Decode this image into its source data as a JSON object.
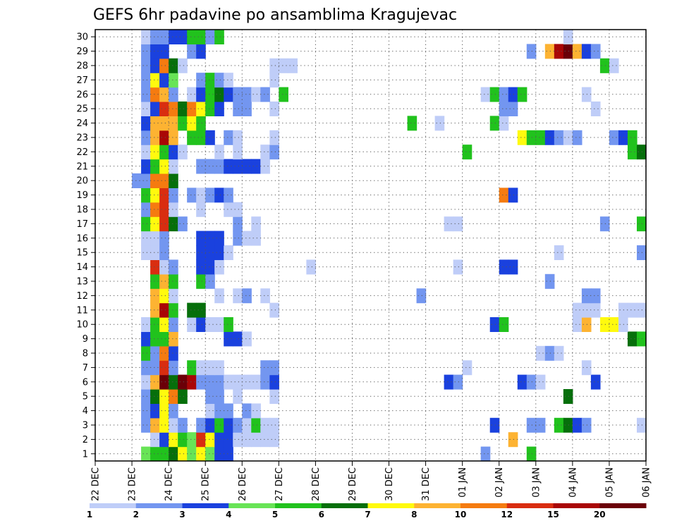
{
  "chart_data": {
    "type": "heatmap",
    "title": "GEFS 6hr padavine po ansamblima Kragujevac",
    "xlabel": "",
    "ylabel": "",
    "x_tick_labels": [
      "22 DEC",
      "23 DEC",
      "24 DEC",
      "25 DEC",
      "26 DEC",
      "27 DEC",
      "28 DEC",
      "29 DEC",
      "30 DEC",
      "31 DEC",
      "01 JAN",
      "02 JAN",
      "03 JAN",
      "04 JAN",
      "05 JAN",
      "06 JAN"
    ],
    "y_tick_labels": [
      "1",
      "2",
      "3",
      "4",
      "5",
      "6",
      "7",
      "8",
      "9",
      "10",
      "11",
      "12",
      "13",
      "14",
      "15",
      "16",
      "17",
      "18",
      "19",
      "20",
      "21",
      "22",
      "23",
      "24",
      "25",
      "26",
      "27",
      "28",
      "29",
      "30"
    ],
    "x_range_steps": [
      0,
      60
    ],
    "steps_per_day": 4,
    "members": 30,
    "grid": true,
    "colorbar_labels": [
      "1",
      "2",
      "3",
      "4",
      "5",
      "6",
      "7",
      "8",
      "10",
      "12",
      "15",
      "20"
    ],
    "levels": [
      1,
      2,
      3,
      4,
      5,
      6,
      7,
      8,
      10,
      12,
      15,
      20
    ],
    "colors": [
      "#bfcdf8",
      "#7396f0",
      "#1a41de",
      "#68e456",
      "#21c21d",
      "#066f0b",
      "#fffa0e",
      "#fdb332",
      "#f57b10",
      "#d92d10",
      "#a90606",
      "#6b0008"
    ],
    "cells": [
      [
        1,
        6,
        4
      ],
      [
        1,
        7,
        5
      ],
      [
        1,
        8,
        5
      ],
      [
        1,
        9,
        6
      ],
      [
        1,
        10,
        7
      ],
      [
        1,
        11,
        4
      ],
      [
        1,
        12,
        7
      ],
      [
        1,
        13,
        4
      ],
      [
        1,
        14,
        3
      ],
      [
        1,
        15,
        3
      ],
      [
        1,
        43,
        2
      ],
      [
        1,
        48,
        5
      ],
      [
        2,
        7,
        1
      ],
      [
        2,
        8,
        3
      ],
      [
        2,
        9,
        7
      ],
      [
        2,
        10,
        5
      ],
      [
        2,
        11,
        4
      ],
      [
        2,
        12,
        10
      ],
      [
        2,
        13,
        7
      ],
      [
        2,
        14,
        3
      ],
      [
        2,
        15,
        3
      ],
      [
        2,
        16,
        1
      ],
      [
        2,
        17,
        1
      ],
      [
        2,
        18,
        1
      ],
      [
        2,
        19,
        1
      ],
      [
        2,
        20,
        1
      ],
      [
        2,
        46,
        8
      ],
      [
        3,
        6,
        2
      ],
      [
        3,
        7,
        8
      ],
      [
        3,
        8,
        7
      ],
      [
        3,
        9,
        1
      ],
      [
        3,
        10,
        2
      ],
      [
        3,
        12,
        2
      ],
      [
        3,
        13,
        3
      ],
      [
        3,
        14,
        5
      ],
      [
        3,
        15,
        3
      ],
      [
        3,
        16,
        2
      ],
      [
        3,
        17,
        1
      ],
      [
        3,
        18,
        5
      ],
      [
        3,
        19,
        1
      ],
      [
        3,
        20,
        1
      ],
      [
        3,
        44,
        3
      ],
      [
        3,
        48,
        2
      ],
      [
        3,
        49,
        2
      ],
      [
        3,
        51,
        5
      ],
      [
        3,
        52,
        6
      ],
      [
        3,
        53,
        3
      ],
      [
        3,
        54,
        2
      ],
      [
        3,
        60,
        1
      ],
      [
        4,
        6,
        2
      ],
      [
        4,
        7,
        3
      ],
      [
        4,
        8,
        7
      ],
      [
        4,
        9,
        2
      ],
      [
        4,
        13,
        1
      ],
      [
        4,
        14,
        2
      ],
      [
        4,
        15,
        2
      ],
      [
        4,
        17,
        2
      ],
      [
        4,
        18,
        1
      ],
      [
        5,
        6,
        2
      ],
      [
        5,
        7,
        6
      ],
      [
        5,
        8,
        7
      ],
      [
        5,
        9,
        9
      ],
      [
        5,
        10,
        6
      ],
      [
        5,
        13,
        2
      ],
      [
        5,
        14,
        2
      ],
      [
        5,
        16,
        1
      ],
      [
        5,
        20,
        1
      ],
      [
        5,
        52,
        6
      ],
      [
        6,
        6,
        1
      ],
      [
        6,
        7,
        8
      ],
      [
        6,
        8,
        12
      ],
      [
        6,
        9,
        6
      ],
      [
        6,
        10,
        12
      ],
      [
        6,
        11,
        11
      ],
      [
        6,
        12,
        2
      ],
      [
        6,
        13,
        2
      ],
      [
        6,
        14,
        2
      ],
      [
        6,
        15,
        1
      ],
      [
        6,
        16,
        1
      ],
      [
        6,
        17,
        1
      ],
      [
        6,
        18,
        1
      ],
      [
        6,
        19,
        2
      ],
      [
        6,
        20,
        3
      ],
      [
        6,
        39,
        3
      ],
      [
        6,
        40,
        2
      ],
      [
        6,
        47,
        3
      ],
      [
        6,
        48,
        2
      ],
      [
        6,
        49,
        1
      ],
      [
        6,
        55,
        3
      ],
      [
        7,
        6,
        2
      ],
      [
        7,
        7,
        2
      ],
      [
        7,
        8,
        10
      ],
      [
        7,
        9,
        2
      ],
      [
        7,
        11,
        5
      ],
      [
        7,
        12,
        1
      ],
      [
        7,
        13,
        1
      ],
      [
        7,
        14,
        1
      ],
      [
        7,
        19,
        2
      ],
      [
        7,
        20,
        2
      ],
      [
        7,
        41,
        1
      ],
      [
        7,
        54,
        1
      ],
      [
        8,
        6,
        5
      ],
      [
        8,
        7,
        2
      ],
      [
        8,
        8,
        9
      ],
      [
        8,
        9,
        3
      ],
      [
        8,
        49,
        1
      ],
      [
        8,
        50,
        2
      ],
      [
        8,
        51,
        1
      ],
      [
        9,
        6,
        3
      ],
      [
        9,
        7,
        5
      ],
      [
        9,
        8,
        5
      ],
      [
        9,
        9,
        8
      ],
      [
        9,
        15,
        3
      ],
      [
        9,
        16,
        3
      ],
      [
        9,
        17,
        1
      ],
      [
        9,
        59,
        6
      ],
      [
        9,
        60,
        5
      ],
      [
        10,
        6,
        1
      ],
      [
        10,
        7,
        5
      ],
      [
        10,
        8,
        7
      ],
      [
        10,
        9,
        2
      ],
      [
        10,
        11,
        1
      ],
      [
        10,
        12,
        3
      ],
      [
        10,
        13,
        1
      ],
      [
        10,
        14,
        1
      ],
      [
        10,
        15,
        5
      ],
      [
        10,
        44,
        3
      ],
      [
        10,
        45,
        5
      ],
      [
        10,
        53,
        1
      ],
      [
        10,
        54,
        8
      ],
      [
        10,
        56,
        7
      ],
      [
        10,
        57,
        7
      ],
      [
        10,
        58,
        1
      ],
      [
        11,
        7,
        8
      ],
      [
        11,
        8,
        11
      ],
      [
        11,
        9,
        5
      ],
      [
        11,
        11,
        6
      ],
      [
        11,
        12,
        6
      ],
      [
        11,
        20,
        1
      ],
      [
        11,
        53,
        1
      ],
      [
        11,
        54,
        1
      ],
      [
        11,
        55,
        1
      ],
      [
        11,
        58,
        1
      ],
      [
        11,
        59,
        1
      ],
      [
        11,
        60,
        1
      ],
      [
        12,
        7,
        8
      ],
      [
        12,
        8,
        7
      ],
      [
        12,
        9,
        1
      ],
      [
        12,
        14,
        1
      ],
      [
        12,
        16,
        1
      ],
      [
        12,
        17,
        2
      ],
      [
        12,
        19,
        1
      ],
      [
        12,
        36,
        2
      ],
      [
        12,
        54,
        2
      ],
      [
        12,
        55,
        2
      ],
      [
        13,
        7,
        5
      ],
      [
        13,
        8,
        8
      ],
      [
        13,
        9,
        5
      ],
      [
        13,
        12,
        5
      ],
      [
        13,
        13,
        2
      ],
      [
        13,
        50,
        2
      ],
      [
        14,
        7,
        10
      ],
      [
        14,
        8,
        1
      ],
      [
        14,
        9,
        2
      ],
      [
        14,
        12,
        3
      ],
      [
        14,
        13,
        3
      ],
      [
        14,
        14,
        1
      ],
      [
        14,
        24,
        1
      ],
      [
        14,
        40,
        1
      ],
      [
        14,
        45,
        3
      ],
      [
        14,
        46,
        3
      ],
      [
        15,
        6,
        1
      ],
      [
        15,
        7,
        1
      ],
      [
        15,
        8,
        2
      ],
      [
        15,
        12,
        3
      ],
      [
        15,
        13,
        3
      ],
      [
        15,
        14,
        3
      ],
      [
        15,
        15,
        1
      ],
      [
        15,
        51,
        1
      ],
      [
        15,
        60,
        2
      ],
      [
        16,
        6,
        1
      ],
      [
        16,
        7,
        1
      ],
      [
        16,
        8,
        2
      ],
      [
        16,
        12,
        3
      ],
      [
        16,
        13,
        3
      ],
      [
        16,
        14,
        3
      ],
      [
        16,
        16,
        2
      ],
      [
        16,
        17,
        1
      ],
      [
        16,
        18,
        1
      ],
      [
        17,
        6,
        5
      ],
      [
        17,
        7,
        7
      ],
      [
        17,
        8,
        10
      ],
      [
        17,
        9,
        6
      ],
      [
        17,
        10,
        2
      ],
      [
        17,
        16,
        2
      ],
      [
        17,
        18,
        1
      ],
      [
        17,
        39,
        1
      ],
      [
        17,
        40,
        1
      ],
      [
        17,
        56,
        2
      ],
      [
        17,
        60,
        5
      ],
      [
        18,
        6,
        2
      ],
      [
        18,
        7,
        9
      ],
      [
        18,
        8,
        10
      ],
      [
        18,
        9,
        1
      ],
      [
        18,
        12,
        1
      ],
      [
        18,
        15,
        1
      ],
      [
        18,
        16,
        1
      ],
      [
        19,
        6,
        5
      ],
      [
        19,
        7,
        7
      ],
      [
        19,
        8,
        10
      ],
      [
        19,
        9,
        2
      ],
      [
        19,
        11,
        2
      ],
      [
        19,
        12,
        1
      ],
      [
        19,
        13,
        2
      ],
      [
        19,
        14,
        3
      ],
      [
        19,
        15,
        2
      ],
      [
        19,
        45,
        9
      ],
      [
        19,
        46,
        3
      ],
      [
        20,
        5,
        2
      ],
      [
        20,
        6,
        2
      ],
      [
        20,
        7,
        9
      ],
      [
        20,
        8,
        9
      ],
      [
        20,
        9,
        6
      ],
      [
        21,
        6,
        3
      ],
      [
        21,
        7,
        5
      ],
      [
        21,
        8,
        7
      ],
      [
        21,
        9,
        1
      ],
      [
        21,
        12,
        2
      ],
      [
        21,
        13,
        2
      ],
      [
        21,
        14,
        2
      ],
      [
        21,
        15,
        3
      ],
      [
        21,
        16,
        3
      ],
      [
        21,
        17,
        3
      ],
      [
        21,
        18,
        3
      ],
      [
        21,
        19,
        1
      ],
      [
        22,
        6,
        1
      ],
      [
        22,
        7,
        7
      ],
      [
        22,
        8,
        5
      ],
      [
        22,
        9,
        3
      ],
      [
        22,
        10,
        1
      ],
      [
        22,
        14,
        1
      ],
      [
        22,
        16,
        1
      ],
      [
        22,
        19,
        1
      ],
      [
        22,
        20,
        2
      ],
      [
        22,
        41,
        5
      ],
      [
        22,
        59,
        5
      ],
      [
        22,
        60,
        6
      ],
      [
        23,
        6,
        2
      ],
      [
        23,
        7,
        8
      ],
      [
        23,
        8,
        11
      ],
      [
        23,
        9,
        8
      ],
      [
        23,
        11,
        5
      ],
      [
        23,
        12,
        5
      ],
      [
        23,
        13,
        3
      ],
      [
        23,
        15,
        2
      ],
      [
        23,
        16,
        1
      ],
      [
        23,
        20,
        1
      ],
      [
        23,
        47,
        7
      ],
      [
        23,
        48,
        5
      ],
      [
        23,
        49,
        5
      ],
      [
        23,
        50,
        3
      ],
      [
        23,
        51,
        2
      ],
      [
        23,
        52,
        1
      ],
      [
        23,
        53,
        2
      ],
      [
        23,
        57,
        2
      ],
      [
        23,
        58,
        3
      ],
      [
        23,
        59,
        5
      ],
      [
        24,
        6,
        3
      ],
      [
        24,
        7,
        8
      ],
      [
        24,
        8,
        8
      ],
      [
        24,
        9,
        8
      ],
      [
        24,
        10,
        5
      ],
      [
        24,
        11,
        7
      ],
      [
        24,
        12,
        5
      ],
      [
        24,
        35,
        5
      ],
      [
        24,
        38,
        1
      ],
      [
        24,
        44,
        5
      ],
      [
        24,
        45,
        1
      ],
      [
        25,
        6,
        1
      ],
      [
        25,
        7,
        3
      ],
      [
        25,
        8,
        10
      ],
      [
        25,
        9,
        9
      ],
      [
        25,
        10,
        6
      ],
      [
        25,
        11,
        9
      ],
      [
        25,
        12,
        7
      ],
      [
        25,
        13,
        5
      ],
      [
        25,
        14,
        3
      ],
      [
        25,
        16,
        2
      ],
      [
        25,
        17,
        2
      ],
      [
        25,
        20,
        1
      ],
      [
        25,
        45,
        2
      ],
      [
        25,
        46,
        2
      ],
      [
        25,
        55,
        1
      ],
      [
        26,
        6,
        2
      ],
      [
        26,
        7,
        9
      ],
      [
        26,
        8,
        8
      ],
      [
        26,
        9,
        2
      ],
      [
        26,
        11,
        1
      ],
      [
        26,
        12,
        3
      ],
      [
        26,
        13,
        5
      ],
      [
        26,
        14,
        6
      ],
      [
        26,
        15,
        3
      ],
      [
        26,
        16,
        2
      ],
      [
        26,
        17,
        2
      ],
      [
        26,
        18,
        1
      ],
      [
        26,
        19,
        2
      ],
      [
        26,
        21,
        5
      ],
      [
        26,
        43,
        1
      ],
      [
        26,
        44,
        5
      ],
      [
        26,
        45,
        2
      ],
      [
        26,
        46,
        3
      ],
      [
        26,
        47,
        5
      ],
      [
        26,
        54,
        1
      ],
      [
        27,
        6,
        2
      ],
      [
        27,
        7,
        7
      ],
      [
        27,
        8,
        3
      ],
      [
        27,
        9,
        4
      ],
      [
        27,
        12,
        2
      ],
      [
        27,
        13,
        5
      ],
      [
        27,
        14,
        2
      ],
      [
        27,
        15,
        1
      ],
      [
        27,
        20,
        1
      ],
      [
        28,
        6,
        2
      ],
      [
        28,
        7,
        3
      ],
      [
        28,
        8,
        9
      ],
      [
        28,
        9,
        6
      ],
      [
        28,
        10,
        1
      ],
      [
        28,
        20,
        1
      ],
      [
        28,
        21,
        1
      ],
      [
        28,
        22,
        1
      ],
      [
        28,
        56,
        5
      ],
      [
        28,
        57,
        1
      ],
      [
        29,
        6,
        2
      ],
      [
        29,
        7,
        3
      ],
      [
        29,
        8,
        3
      ],
      [
        29,
        11,
        2
      ],
      [
        29,
        12,
        3
      ],
      [
        29,
        48,
        2
      ],
      [
        29,
        50,
        8
      ],
      [
        29,
        51,
        11
      ],
      [
        29,
        52,
        12
      ],
      [
        29,
        53,
        8
      ],
      [
        29,
        54,
        3
      ],
      [
        29,
        55,
        2
      ],
      [
        30,
        6,
        1
      ],
      [
        30,
        7,
        2
      ],
      [
        30,
        8,
        2
      ],
      [
        30,
        9,
        3
      ],
      [
        30,
        10,
        3
      ],
      [
        30,
        11,
        5
      ],
      [
        30,
        12,
        5
      ],
      [
        30,
        13,
        2
      ],
      [
        30,
        14,
        5
      ],
      [
        30,
        52,
        1
      ]
    ]
  }
}
